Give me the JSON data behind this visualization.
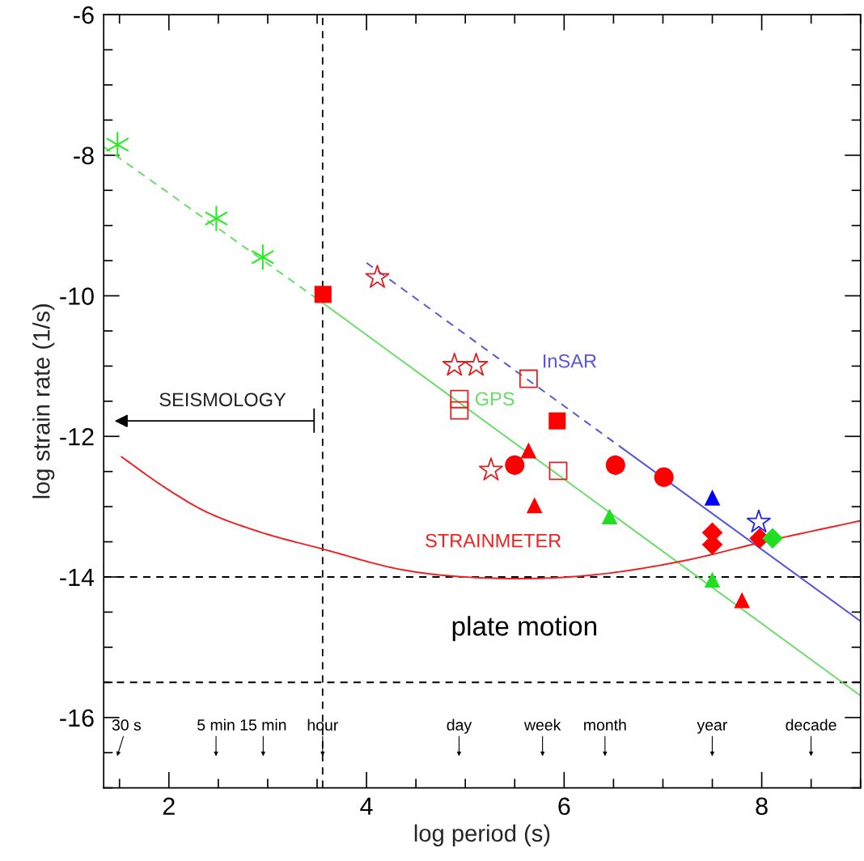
{
  "chart_data": {
    "type": "scatter",
    "xlabel": "log period (s)",
    "ylabel": "log strain rate (1/s)",
    "xlim": [
      1.34,
      9.0
    ],
    "ylim": [
      -17,
      -6
    ],
    "xticks": [
      2,
      4,
      6,
      8
    ],
    "yticks": [
      -16,
      -14,
      -12,
      -10,
      -8,
      -6
    ],
    "ref_lines": [
      {
        "axis": "x",
        "value": 3.556,
        "label": null,
        "color": "#000000",
        "line_style": "dashed"
      },
      {
        "axis": "y",
        "value": -14,
        "label": null,
        "color": "#000000",
        "line_style": "dashed"
      },
      {
        "axis": "y",
        "value": -15.5,
        "label": null,
        "color": "#000000",
        "line_style": "dashed"
      }
    ],
    "series": [
      {
        "type": "line",
        "color": "#66dd66",
        "line_style": "dashed",
        "x": [
          1.34,
          3.556
        ],
        "values": [
          -7.88,
          -10.1
        ]
      },
      {
        "type": "line",
        "name": "GPS",
        "color": "#66dd66",
        "line_style": "solid",
        "x": [
          3.556,
          9.0
        ],
        "values": [
          -10.1,
          -15.69
        ]
      },
      {
        "type": "line",
        "name": "InSAR",
        "color": "#5555dd",
        "line_style": "dashed",
        "x": [
          4.0,
          6.6
        ],
        "values": [
          -9.53,
          -12.18
        ]
      },
      {
        "type": "line",
        "color": "#5555dd",
        "line_style": "solid",
        "x": [
          6.6,
          9.0
        ],
        "values": [
          -12.18,
          -14.63
        ]
      },
      {
        "type": "line",
        "name": "STRAINMETER",
        "color": "#ee2222",
        "line_style": "solid",
        "x": [
          1.52,
          1.93,
          2.33,
          2.9,
          3.55,
          4.37,
          5.34,
          6.15,
          7.21,
          8.02,
          9.0
        ],
        "values": [
          -12.29,
          -12.7,
          -13.04,
          -13.35,
          -13.6,
          -13.9,
          -14.02,
          -13.99,
          -13.77,
          -13.5,
          -13.2
        ]
      },
      {
        "color": "#22ee22",
        "marker": "cross",
        "x": [
          1.48,
          2.48,
          2.95
        ],
        "values": [
          -7.85,
          -8.9,
          -9.45
        ]
      },
      {
        "color": "#ff0000",
        "marker": "square",
        "x": [
          3.56,
          5.93
        ],
        "values": [
          -9.98,
          -11.78
        ]
      },
      {
        "color": "#dd2222",
        "marker": "square-open",
        "x": [
          5.64,
          4.94,
          4.94,
          5.94
        ],
        "values": [
          -11.18,
          -11.47,
          -11.63,
          -12.49
        ]
      },
      {
        "color": "#dd2222",
        "marker": "star-open",
        "x": [
          4.11,
          4.89,
          5.11,
          5.26
        ],
        "values": [
          -9.74,
          -10.99,
          -10.99,
          -12.48
        ]
      },
      {
        "color": "#ff0000",
        "marker": "triangle",
        "x": [
          5.64,
          5.7,
          7.8
        ],
        "values": [
          -12.2,
          -12.98,
          -14.33
        ]
      },
      {
        "color": "#ff0000",
        "marker": "circle",
        "x": [
          5.5,
          6.52,
          7.01
        ],
        "values": [
          -12.41,
          -12.41,
          -12.58
        ]
      },
      {
        "color": "#ff0000",
        "marker": "diamond",
        "x": [
          7.5,
          7.5,
          7.98
        ],
        "values": [
          -13.37,
          -13.54,
          -13.45
        ]
      },
      {
        "color": "#0000ff",
        "marker": "triangle",
        "x": [
          7.5
        ],
        "values": [
          -12.87
        ]
      },
      {
        "color": "#2222ee",
        "marker": "star-open",
        "x": [
          7.97
        ],
        "values": [
          -13.22
        ]
      },
      {
        "color": "#22dd22",
        "marker": "diamond",
        "x": [
          8.11
        ],
        "values": [
          -13.45
        ]
      },
      {
        "color": "#22dd22",
        "marker": "triangle",
        "x": [
          6.46,
          7.5
        ],
        "values": [
          -13.14,
          -14.04
        ]
      }
    ],
    "annotations": [
      "SEISMOLOGY",
      "plate motion",
      "30 s",
      "5 min",
      "15 min",
      {
        "text": "hour",
        "x": 3.556,
        "y": -16.55
      },
      "day",
      "week",
      "month",
      "year",
      "decade"
    ]
  }
}
